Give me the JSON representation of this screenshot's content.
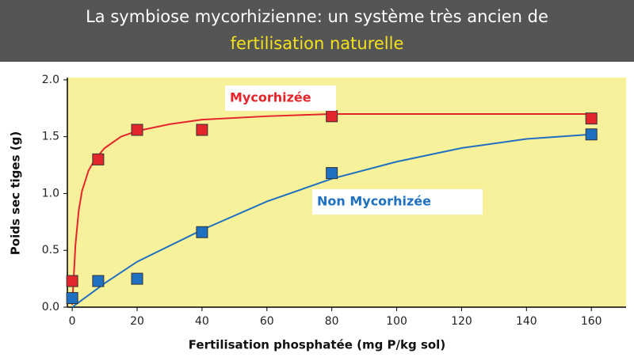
{
  "chart_data": {
    "type": "scatter",
    "title": [
      "La symbiose mycorhizienne: un système très ancien  de",
      "fertilisation naturelle"
    ],
    "xlabel": "Fertilisation phosphatée (mg P/kg sol)",
    "ylabel": "Poids sec tiges (g)",
    "xlim": [
      -1.5,
      170.7
    ],
    "ylim": [
      0,
      2.02
    ],
    "xticks": [
      0,
      20,
      40,
      60,
      80,
      100,
      120,
      140,
      160
    ],
    "yticks": [
      {
        "value": 0,
        "label": "0.0"
      },
      {
        "value": 0.5,
        "label": "0.5"
      },
      {
        "value": 1,
        "label": "1.0"
      },
      {
        "value": 1.5,
        "label": "1.5"
      },
      {
        "value": 2,
        "label": "2.0"
      }
    ],
    "background": "#f8f19c",
    "series": [
      {
        "name": "Mycorhizée",
        "color": "#e3262b",
        "x": [
          0,
          8,
          20,
          40,
          80,
          160
        ],
        "values": [
          0.23,
          1.3,
          1.56,
          1.56,
          1.68,
          1.66
        ],
        "fit_x": [
          0,
          1,
          2,
          3,
          5,
          7,
          10,
          15,
          20,
          30,
          40,
          60,
          80,
          120,
          160
        ],
        "fit_values": [
          0.02,
          0.55,
          0.85,
          1.02,
          1.2,
          1.3,
          1.4,
          1.5,
          1.55,
          1.61,
          1.65,
          1.68,
          1.7,
          1.7,
          1.7
        ]
      },
      {
        "name": "Non Mycorhizée",
        "color": "#1f70c1",
        "x": [
          0,
          8,
          20,
          40,
          80,
          160
        ],
        "values": [
          0.08,
          0.23,
          0.25,
          0.66,
          1.18,
          1.52
        ],
        "fit_x": [
          0,
          10,
          20,
          40,
          60,
          80,
          100,
          120,
          140,
          160
        ],
        "fit_values": [
          0,
          0.21,
          0.4,
          0.68,
          0.93,
          1.13,
          1.28,
          1.4,
          1.48,
          1.52
        ]
      }
    ]
  }
}
